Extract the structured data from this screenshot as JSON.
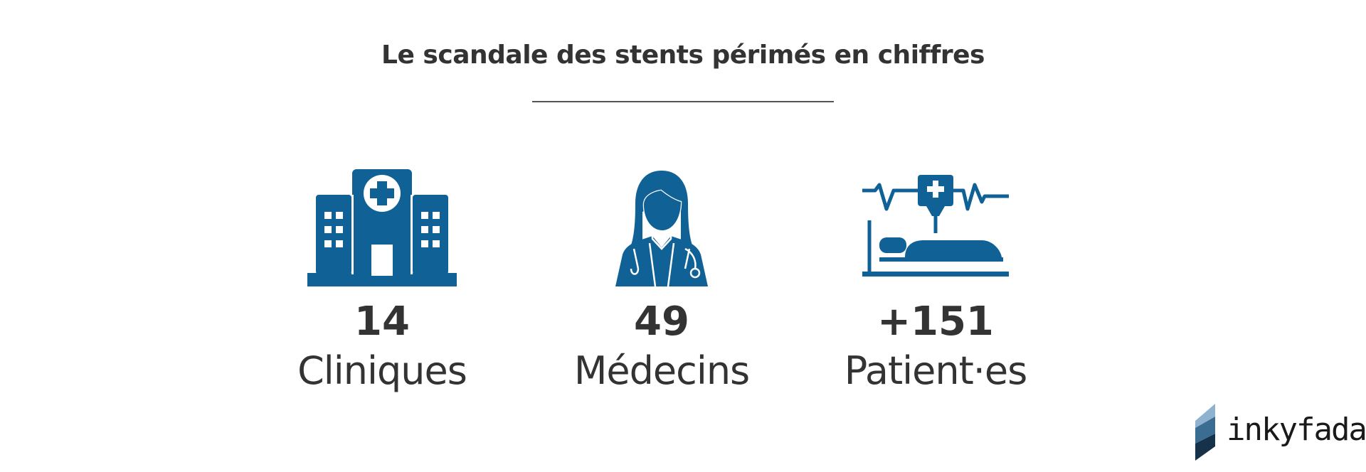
{
  "title": "Le scandale des stents périmés en chiffres",
  "accent_color": "#0f6196",
  "stats": [
    {
      "icon": "hospital-icon",
      "value": "14",
      "label": "Cliniques"
    },
    {
      "icon": "doctor-icon",
      "value": "49",
      "label": "Médecins"
    },
    {
      "icon": "patient-bed-icon",
      "value": "+151",
      "label": "Patient·es"
    }
  ],
  "logo": {
    "text": "inkyfada",
    "icon": "inkyfada-logo-mark"
  }
}
